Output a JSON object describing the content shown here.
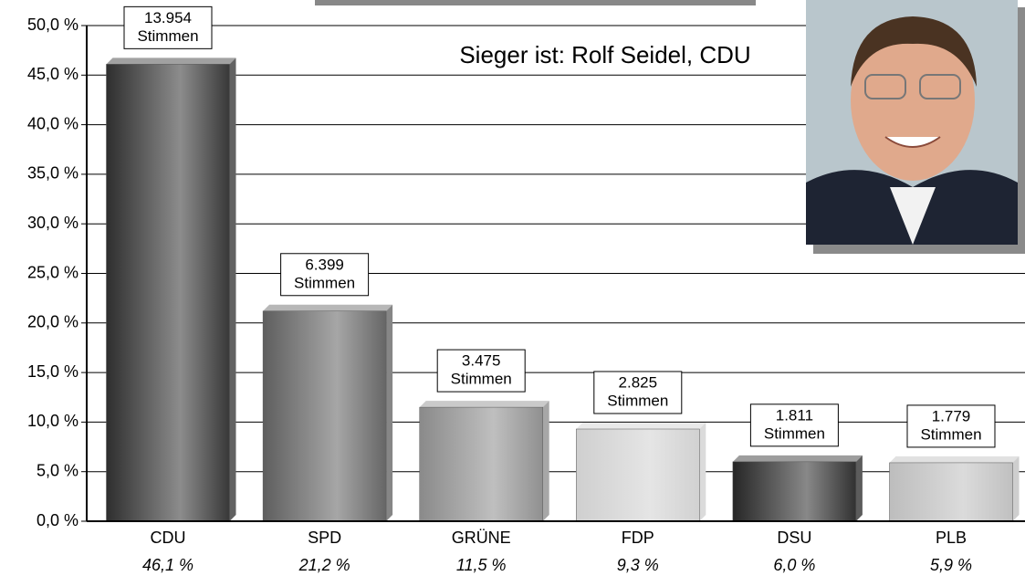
{
  "chart_data": {
    "type": "bar",
    "annotation": "Sieger ist: Rolf Seidel, CDU",
    "categories": [
      "CDU",
      "SPD",
      "GRÜNE",
      "FDP",
      "DSU",
      "PLB"
    ],
    "values": [
      46.1,
      21.2,
      11.5,
      9.3,
      6.0,
      5.9
    ],
    "value_labels": [
      "46,1 %",
      "21,2 %",
      "11,5 %",
      "9,3 %",
      "6,0 %",
      "5,9 %"
    ],
    "votes": [
      13954,
      6399,
      3475,
      2825,
      1811,
      1779
    ],
    "vote_labels": [
      "13.954",
      "6.399",
      "3.475",
      "2.825",
      "1.811",
      "1.779"
    ],
    "vote_unit": "Stimmen",
    "colors": [
      "#2e2e2e",
      "#5e5e5e",
      "#8a8a8a",
      "#cfcfcf",
      "#262626",
      "#bdbdbd"
    ],
    "ylim": [
      0,
      50
    ],
    "yticks": [
      {
        "value": 0,
        "label": "0,0 %"
      },
      {
        "value": 5,
        "label": "5,0 %"
      },
      {
        "value": 10,
        "label": "10,0 %"
      },
      {
        "value": 15,
        "label": "15,0 %"
      },
      {
        "value": 20,
        "label": "20,0 %"
      },
      {
        "value": 25,
        "label": "25,0 %"
      },
      {
        "value": 30,
        "label": "30,0 %"
      },
      {
        "value": 35,
        "label": "35,0 %"
      },
      {
        "value": 40,
        "label": "40,0 %"
      },
      {
        "value": 45,
        "label": "45,0 %"
      },
      {
        "value": 50,
        "label": "50,0 %"
      }
    ],
    "grid": true
  }
}
